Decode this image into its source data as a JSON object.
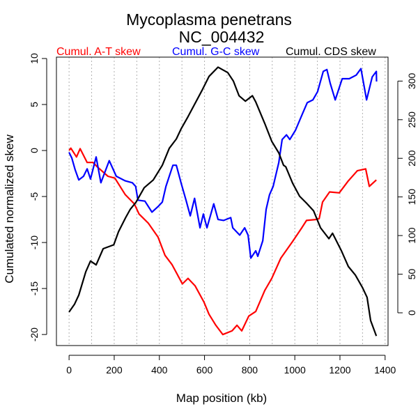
{
  "chart_data": {
    "type": "line",
    "title": "Mycoplasma penetrans",
    "subtitle": "NC_004432",
    "xlabel": "Map position (kb)",
    "ylabel": "Cumulated normalized skew",
    "xlim": [
      -56,
      1413
    ],
    "ylim": [
      -21.2,
      10.15
    ],
    "y2lim": [
      -42.4,
      331
    ],
    "xticks": [
      0,
      200,
      400,
      600,
      800,
      1000,
      1200,
      1400
    ],
    "yticks": [
      -20,
      -15,
      -10,
      -5,
      0,
      5,
      10
    ],
    "y2ticks": [
      0,
      50,
      100,
      150,
      200,
      250,
      300
    ],
    "grid": "vertical dotted every 100 kb",
    "legend_placement": "top, above plot",
    "series": [
      {
        "name": "Cumul. A-T skew",
        "color": "#ff0000",
        "axis": "left",
        "x": [
          0,
          8,
          33,
          49,
          80,
          106,
          126,
          172,
          203,
          249,
          289,
          310,
          351,
          394,
          425,
          456,
          502,
          527,
          558,
          598,
          620,
          650,
          681,
          722,
          744,
          765,
          796,
          827,
          867,
          898,
          938,
          990,
          1031,
          1052,
          1093,
          1108,
          1123,
          1154,
          1197,
          1237,
          1277,
          1314,
          1330,
          1361
        ],
        "y": [
          0,
          0.25,
          -0.7,
          0.2,
          -1.3,
          -1.3,
          -1.8,
          -2.8,
          -3,
          -4.8,
          -5.8,
          -6.9,
          -7.9,
          -9.4,
          -11.4,
          -12.4,
          -14.5,
          -13.9,
          -14.7,
          -16.5,
          -17.8,
          -19,
          -20,
          -19.6,
          -19,
          -19.6,
          -18,
          -17.5,
          -15.2,
          -13.9,
          -11.7,
          -9.9,
          -8.4,
          -7.6,
          -7.5,
          -7.4,
          -5.6,
          -4.5,
          -4.6,
          -3.3,
          -2.2,
          -2,
          -3.9,
          -3.2
        ]
      },
      {
        "name": "Cumul. G-C skew",
        "color": "#0000ff",
        "axis": "left",
        "x": [
          0,
          12,
          27,
          43,
          64,
          80,
          95,
          120,
          141,
          178,
          209,
          249,
          280,
          295,
          305,
          336,
          367,
          394,
          413,
          429,
          460,
          475,
          497,
          518,
          537,
          556,
          580,
          595,
          611,
          641,
          660,
          685,
          716,
          725,
          756,
          778,
          793,
          805,
          827,
          836,
          858,
          873,
          888,
          904,
          929,
          944,
          963,
          978,
          1003,
          1034,
          1055,
          1080,
          1101,
          1126,
          1142,
          1157,
          1179,
          1210,
          1241,
          1272,
          1293,
          1318,
          1343,
          1361,
          1362
        ],
        "y": [
          -0.2,
          -0.8,
          -2.1,
          -3.2,
          -2.8,
          -2,
          -3.1,
          -0.7,
          -3.5,
          -1.1,
          -2.8,
          -3.3,
          -3.5,
          -3.9,
          -5.4,
          -5.5,
          -6.7,
          -6.1,
          -5.6,
          -3.9,
          -1.6,
          -1.6,
          -3.6,
          -5.4,
          -7.1,
          -5.2,
          -8.4,
          -6.9,
          -8.4,
          -5.8,
          -7.5,
          -7.6,
          -7.3,
          -8.4,
          -9.2,
          -8.4,
          -9.2,
          -11.7,
          -10.9,
          -11.5,
          -9.8,
          -6.4,
          -4.8,
          -3.9,
          -1.3,
          1.2,
          1.7,
          1.2,
          2.2,
          4,
          5.2,
          5.5,
          6.4,
          8.6,
          8.8,
          7.3,
          5.5,
          7.8,
          7.8,
          8.2,
          8.9,
          5.5,
          8,
          8.6,
          7.5
        ]
      },
      {
        "name": "Cumul. CDS skew",
        "color": "#000000",
        "axis": "right",
        "x": [
          0,
          24,
          43,
          74,
          95,
          120,
          151,
          198,
          219,
          250,
          271,
          296,
          333,
          373,
          413,
          444,
          475,
          496,
          527,
          589,
          620,
          660,
          703,
          728,
          753,
          781,
          812,
          827,
          867,
          898,
          929,
          950,
          960,
          990,
          1021,
          1052,
          1083,
          1114,
          1151,
          1167,
          1207,
          1237,
          1268,
          1299,
          1320,
          1336,
          1361
        ],
        "y": [
          1,
          11,
          23,
          53,
          67,
          62,
          83,
          88,
          105,
          123,
          134,
          143,
          162,
          172,
          191,
          213,
          225,
          238,
          254,
          288,
          306,
          318,
          311,
          300,
          281,
          274,
          281,
          273,
          245,
          222,
          207,
          191,
          189,
          168,
          151,
          142,
          132,
          110,
          96,
          103,
          80,
          60,
          49,
          33,
          20,
          -10,
          -30
        ]
      }
    ]
  }
}
